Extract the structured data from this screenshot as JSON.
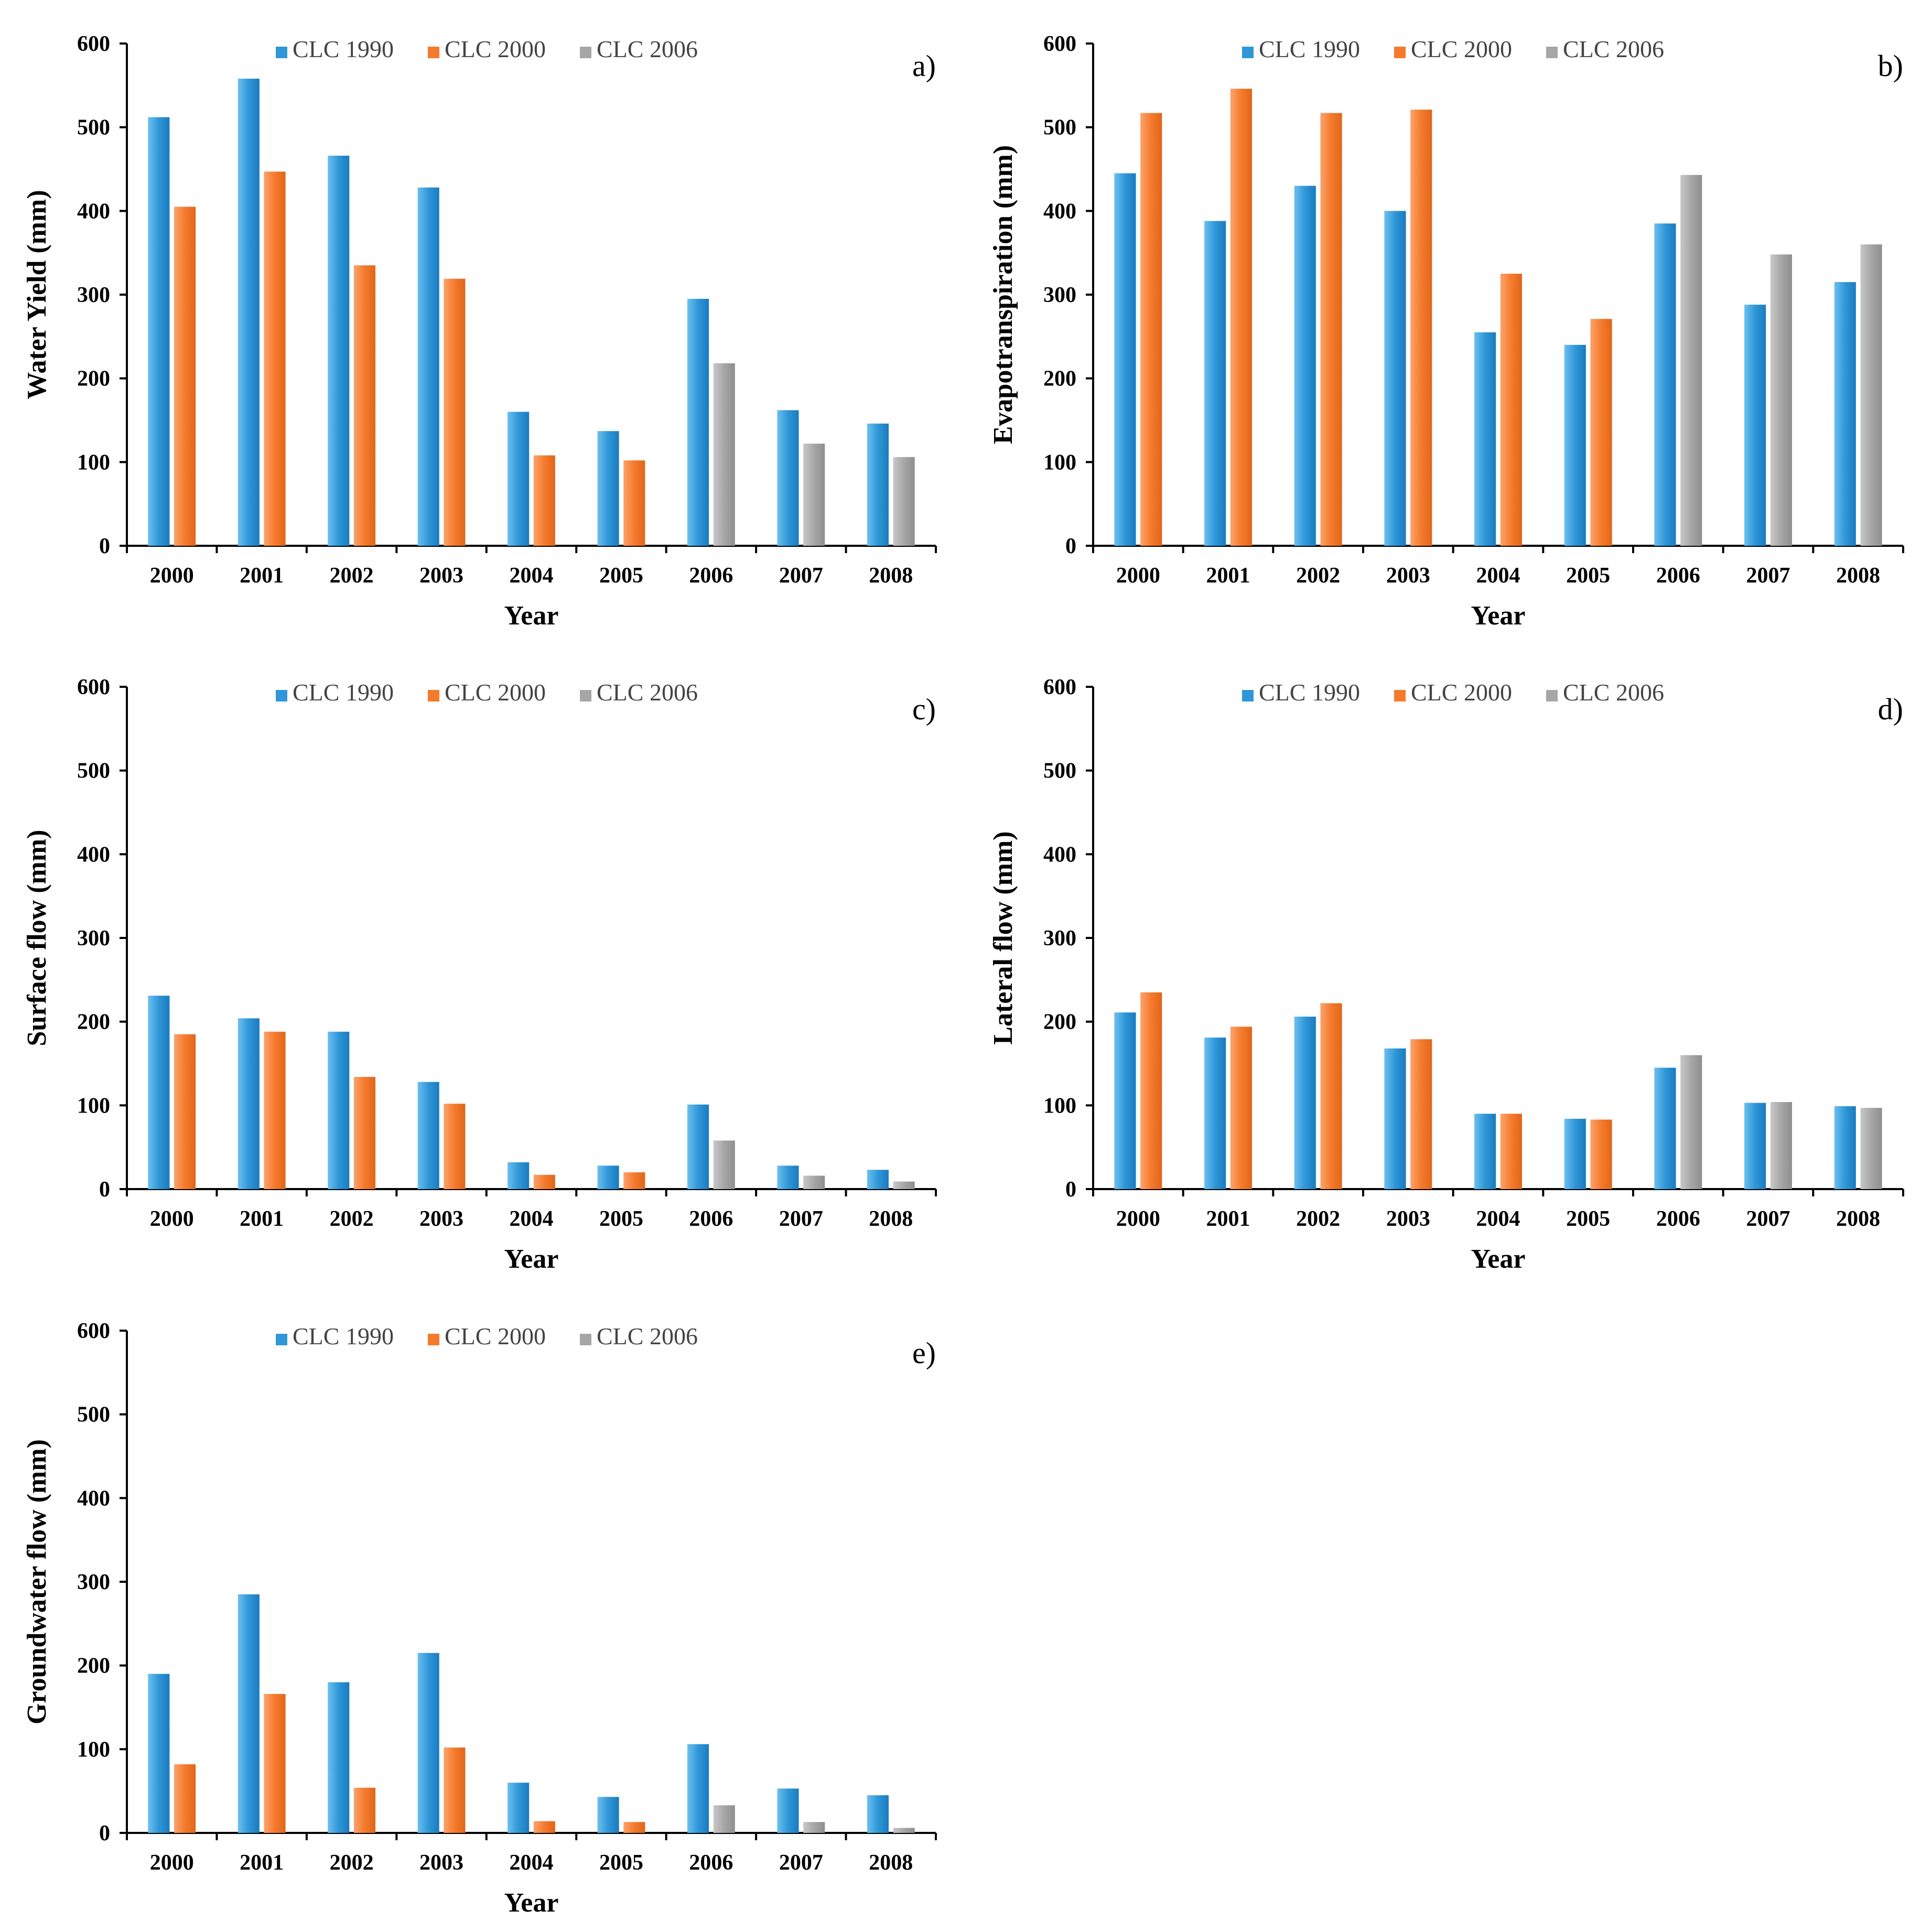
{
  "colors": {
    "clc1990": "#2f97d8",
    "clc2000": "#f57a2c",
    "clc2006": "#a6a6a6"
  },
  "legend": [
    "CLC 1990",
    "CLC 2000",
    "CLC 2006"
  ],
  "chart_data": [
    {
      "id": "a",
      "panel_label": "a)",
      "type": "bar",
      "title": "",
      "xlabel": "Year",
      "ylabel": "Water Yield (mm)",
      "ylim": [
        0,
        600
      ],
      "yticks": [
        "0",
        "100",
        "200",
        "300",
        "400",
        "500",
        "600"
      ],
      "categories": [
        "2000",
        "2001",
        "2002",
        "2003",
        "2004",
        "2005",
        "2006",
        "2007",
        "2008"
      ],
      "series": [
        {
          "name": "CLC 1990",
          "values": [
            512,
            558,
            466,
            428,
            160,
            137,
            295,
            162,
            146
          ]
        },
        {
          "name": "CLC 2000",
          "values": [
            405,
            447,
            335,
            319,
            108,
            102,
            null,
            null,
            null
          ]
        },
        {
          "name": "CLC 2006",
          "values": [
            null,
            null,
            null,
            null,
            null,
            null,
            218,
            122,
            106
          ]
        }
      ]
    },
    {
      "id": "b",
      "panel_label": "b)",
      "type": "bar",
      "title": "",
      "xlabel": "Year",
      "ylabel": "Evapotranspiration (mm)",
      "ylim": [
        0,
        600
      ],
      "yticks": [
        "0",
        "100",
        "200",
        "300",
        "400",
        "500",
        "600"
      ],
      "categories": [
        "2000",
        "2001",
        "2002",
        "2003",
        "2004",
        "2005",
        "2006",
        "2007",
        "2008"
      ],
      "series": [
        {
          "name": "CLC 1990",
          "values": [
            445,
            388,
            430,
            400,
            255,
            240,
            385,
            288,
            315
          ]
        },
        {
          "name": "CLC 2000",
          "values": [
            517,
            546,
            517,
            521,
            325,
            271,
            null,
            null,
            null
          ]
        },
        {
          "name": "CLC 2006",
          "values": [
            null,
            null,
            null,
            null,
            null,
            null,
            443,
            348,
            360
          ]
        }
      ]
    },
    {
      "id": "c",
      "panel_label": "c)",
      "type": "bar",
      "title": "",
      "xlabel": "Year",
      "ylabel": "Surface flow (mm)",
      "ylim": [
        0,
        600
      ],
      "yticks": [
        "0",
        "100",
        "200",
        "300",
        "400",
        "500",
        "600"
      ],
      "categories": [
        "2000",
        "2001",
        "2002",
        "2003",
        "2004",
        "2005",
        "2006",
        "2007",
        "2008"
      ],
      "series": [
        {
          "name": "CLC 1990",
          "values": [
            231,
            204,
            188,
            128,
            32,
            28,
            101,
            28,
            23
          ]
        },
        {
          "name": "CLC 2000",
          "values": [
            185,
            188,
            134,
            102,
            17,
            20,
            null,
            null,
            null
          ]
        },
        {
          "name": "CLC 2006",
          "values": [
            null,
            null,
            null,
            null,
            null,
            null,
            58,
            16,
            9
          ]
        }
      ]
    },
    {
      "id": "d",
      "panel_label": "d)",
      "type": "bar",
      "title": "",
      "xlabel": "Year",
      "ylabel": "Lateral flow (mm)",
      "ylim": [
        0,
        600
      ],
      "yticks": [
        "0",
        "100",
        "200",
        "300",
        "400",
        "500",
        "600"
      ],
      "categories": [
        "2000",
        "2001",
        "2002",
        "2003",
        "2004",
        "2005",
        "2006",
        "2007",
        "2008"
      ],
      "series": [
        {
          "name": "CLC 1990",
          "values": [
            211,
            181,
            206,
            168,
            90,
            84,
            145,
            103,
            99
          ]
        },
        {
          "name": "CLC 2000",
          "values": [
            235,
            194,
            222,
            179,
            90,
            83,
            null,
            null,
            null
          ]
        },
        {
          "name": "CLC 2006",
          "values": [
            null,
            null,
            null,
            null,
            null,
            null,
            160,
            104,
            97
          ]
        }
      ]
    },
    {
      "id": "e",
      "panel_label": "e)",
      "type": "bar",
      "title": "",
      "xlabel": "Year",
      "ylabel": "Groundwater flow (mm)",
      "ylim": [
        0,
        600
      ],
      "yticks": [
        "0",
        "100",
        "200",
        "300",
        "400",
        "500",
        "600"
      ],
      "categories": [
        "2000",
        "2001",
        "2002",
        "2003",
        "2004",
        "2005",
        "2006",
        "2007",
        "2008"
      ],
      "series": [
        {
          "name": "CLC 1990",
          "values": [
            190,
            285,
            180,
            215,
            60,
            43,
            106,
            53,
            45
          ]
        },
        {
          "name": "CLC 2000",
          "values": [
            82,
            166,
            54,
            102,
            14,
            13,
            null,
            null,
            null
          ]
        },
        {
          "name": "CLC 2006",
          "values": [
            null,
            null,
            null,
            null,
            null,
            null,
            33,
            13,
            6
          ]
        }
      ]
    }
  ]
}
